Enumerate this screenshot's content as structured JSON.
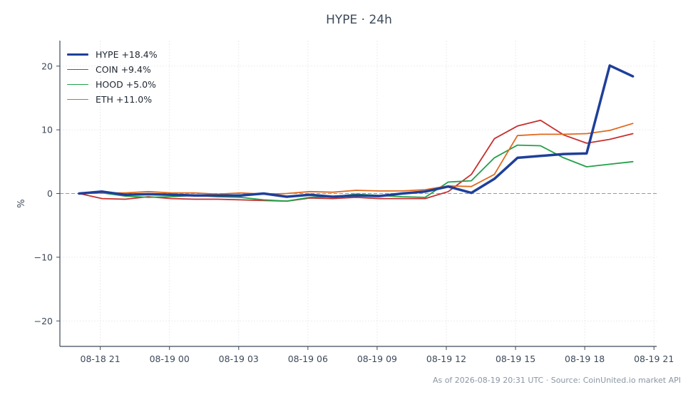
{
  "chart_data": {
    "type": "line",
    "title": "HYPE · 24h",
    "xlabel": "",
    "ylabel": "%",
    "ylim": [
      -24,
      24
    ],
    "yticks": [
      -20,
      -10,
      0,
      10,
      20
    ],
    "ytick_labels": [
      "−20",
      "−10",
      "0",
      "10",
      "20"
    ],
    "x_range": [
      "2026-08-18 19:15",
      "2026-08-19 21:07"
    ],
    "xticks": [
      "2026-08-18 21:00",
      "2026-08-19 00:00",
      "2026-08-19 03:00",
      "2026-08-19 06:00",
      "2026-08-19 09:00",
      "2026-08-19 12:00",
      "2026-08-19 15:00",
      "2026-08-19 18:00",
      "2026-08-19 21:00"
    ],
    "xtick_labels": [
      "08-18 21",
      "08-19 00",
      "08-19 03",
      "08-19 06",
      "08-19 09",
      "08-19 12",
      "08-19 15",
      "08-19 18",
      "08-19 21"
    ],
    "x": [
      "2026-08-18 20:05",
      "2026-08-18 21:05",
      "2026-08-18 22:05",
      "2026-08-18 23:05",
      "2026-08-19 00:05",
      "2026-08-19 01:05",
      "2026-08-19 02:05",
      "2026-08-19 03:05",
      "2026-08-19 04:05",
      "2026-08-19 05:05",
      "2026-08-19 06:05",
      "2026-08-19 07:05",
      "2026-08-19 08:05",
      "2026-08-19 09:05",
      "2026-08-19 10:05",
      "2026-08-19 11:05",
      "2026-08-19 12:05",
      "2026-08-19 13:05",
      "2026-08-19 14:05",
      "2026-08-19 15:05",
      "2026-08-19 16:05",
      "2026-08-19 17:05",
      "2026-08-19 18:05",
      "2026-08-19 19:05",
      "2026-08-19 20:05"
    ],
    "series": [
      {
        "name": "HYPE +18.4%",
        "color": "#1f3f99",
        "width": 3.5,
        "values": [
          0.0,
          0.3,
          -0.2,
          -0.1,
          -0.2,
          -0.3,
          -0.3,
          -0.3,
          0.0,
          -0.5,
          -0.2,
          -0.5,
          -0.3,
          -0.4,
          0.0,
          0.3,
          1.1,
          0.1,
          2.3,
          5.6,
          5.9,
          6.2,
          6.3,
          20.1,
          18.4
        ]
      },
      {
        "name": "COIN +9.4%",
        "color": "#c62f2f",
        "width": 1.8,
        "values": [
          0.0,
          -0.8,
          -0.9,
          -0.5,
          -0.8,
          -0.9,
          -0.9,
          -1.0,
          -1.1,
          -1.2,
          -0.7,
          -0.8,
          -0.6,
          -0.8,
          -0.8,
          -0.8,
          0.3,
          3.0,
          8.6,
          10.6,
          11.5,
          9.2,
          7.9,
          8.5,
          9.4
        ]
      },
      {
        "name": "HOOD +5.0%",
        "color": "#23a04a",
        "width": 1.8,
        "values": [
          0.0,
          0.1,
          -0.4,
          -0.6,
          -0.5,
          -0.3,
          -0.5,
          -0.6,
          -1.0,
          -1.2,
          -0.6,
          -0.5,
          -0.1,
          -0.3,
          -0.5,
          -0.6,
          1.8,
          2.0,
          5.6,
          7.6,
          7.5,
          5.6,
          4.2,
          4.6,
          5.0
        ]
      },
      {
        "name": "ETH +11.0%",
        "color": "#e0691d",
        "width": 1.8,
        "values": [
          0.0,
          0.1,
          0.1,
          0.3,
          0.1,
          0.1,
          -0.1,
          0.1,
          -0.1,
          0.0,
          0.3,
          0.2,
          0.5,
          0.4,
          0.4,
          0.6,
          1.2,
          1.1,
          3.0,
          9.1,
          9.3,
          9.3,
          9.4,
          9.9,
          11.0
        ]
      }
    ],
    "zero_line": true,
    "grid": true,
    "legend_position": "top-left"
  },
  "footer": "As of 2026-08-19 20:31 UTC · Source: CoinUnited.io market API",
  "colors": {
    "axis": "#3d4a5a",
    "grid": "#e3e7ec",
    "zero_line": "#8a9aab"
  }
}
